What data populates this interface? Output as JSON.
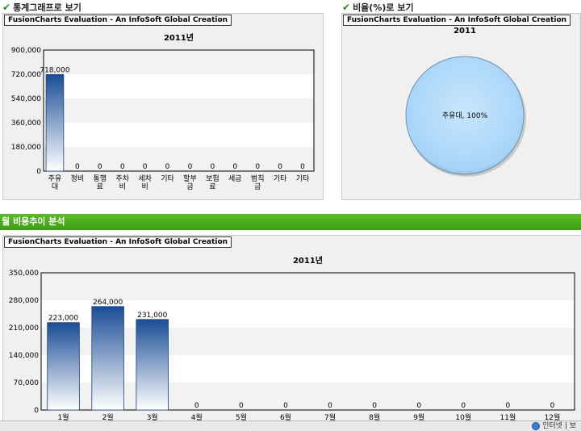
{
  "sections": {
    "stats_title": "통계그래프로 보기",
    "ratio_title": "비율(%)로 보기",
    "trend_title": "월 비용추이 분석"
  },
  "eval_label": "FusionCharts Evaluation - An InfoSoft Global Creation",
  "status": {
    "text": "인터넷 | 보"
  },
  "colors": {
    "bar_top": "#1a4d96",
    "bar_bottom": "#ffffff",
    "pie": "#a8d4f7",
    "green": "#4aa81e"
  },
  "chart_data": [
    {
      "type": "bar",
      "title": "2011년",
      "categories": [
        [
          "주유",
          "대"
        ],
        [
          "정비"
        ],
        [
          "통행",
          "료"
        ],
        [
          "주차",
          "비"
        ],
        [
          "세차",
          "비"
        ],
        [
          "기타"
        ],
        [
          "할부",
          "금"
        ],
        [
          "보험",
          "료"
        ],
        [
          "세금"
        ],
        [
          "범칙",
          "금"
        ],
        [
          "기타"
        ],
        [
          "기타"
        ]
      ],
      "values": [
        718000,
        0,
        0,
        0,
        0,
        0,
        0,
        0,
        0,
        0,
        0,
        0
      ],
      "value_labels": [
        "718,000",
        "0",
        "0",
        "0",
        "0",
        "0",
        "0",
        "0",
        "0",
        "0",
        "0",
        "0"
      ],
      "yticks": [
        "0",
        "180,000",
        "360,000",
        "540,000",
        "720,000",
        "900,000"
      ],
      "ylim": [
        0,
        900000
      ]
    },
    {
      "type": "pie",
      "title": "2011",
      "slices": [
        {
          "label": "주유대, 100%",
          "value": 100
        }
      ]
    },
    {
      "type": "bar",
      "title": "2011년",
      "categories": [
        "1월",
        "2월",
        "3월",
        "4월",
        "5월",
        "6월",
        "7월",
        "8월",
        "9월",
        "10월",
        "11월",
        "12월"
      ],
      "values": [
        223000,
        264000,
        231000,
        0,
        0,
        0,
        0,
        0,
        0,
        0,
        0,
        0
      ],
      "value_labels": [
        "223,000",
        "264,000",
        "231,000",
        "0",
        "0",
        "0",
        "0",
        "0",
        "0",
        "0",
        "0",
        "0"
      ],
      "yticks": [
        "0",
        "70,000",
        "140,000",
        "210,000",
        "280,000",
        "350,000"
      ],
      "ylim": [
        0,
        350000
      ]
    }
  ]
}
